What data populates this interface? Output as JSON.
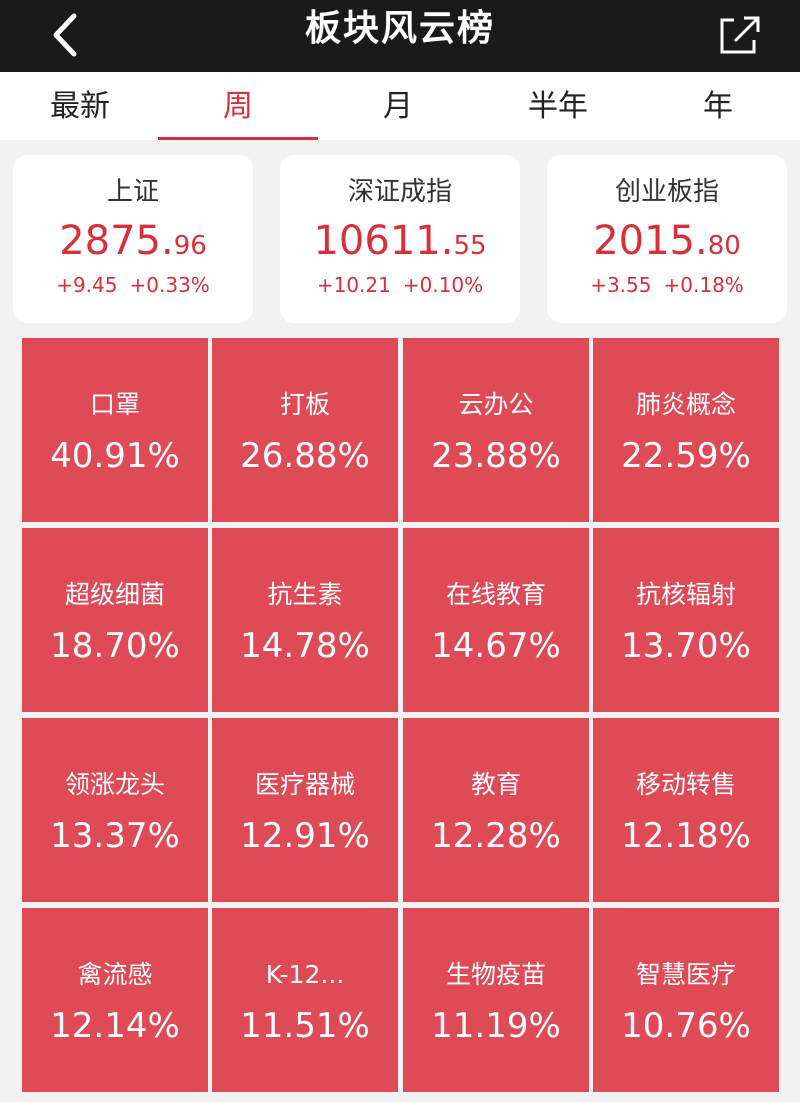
{
  "header": {
    "title": "板块风云榜",
    "back_icon": "chevron-left-icon",
    "share_icon": "share-icon"
  },
  "tabs": [
    {
      "label": "最新",
      "active": false
    },
    {
      "label": "周",
      "active": true
    },
    {
      "label": "月",
      "active": false
    },
    {
      "label": "半年",
      "active": false
    },
    {
      "label": "年",
      "active": false
    }
  ],
  "indices": [
    {
      "name": "上证",
      "price_int": "2875.",
      "price_dec": "96",
      "change": "+9.45",
      "change_pct": "+0.33%"
    },
    {
      "name": "深证成指",
      "price_int": "10611.",
      "price_dec": "55",
      "change": "+10.21",
      "change_pct": "+0.10%"
    },
    {
      "name": "创业板指",
      "price_int": "2015.",
      "price_dec": "80",
      "change": "+3.55",
      "change_pct": "+0.18%"
    }
  ],
  "sectors": [
    {
      "name": "口罩",
      "pct": "40.91%"
    },
    {
      "name": "打板",
      "pct": "26.88%"
    },
    {
      "name": "云办公",
      "pct": "23.88%"
    },
    {
      "name": "肺炎概念",
      "pct": "22.59%"
    },
    {
      "name": "超级细菌",
      "pct": "18.70%"
    },
    {
      "name": "抗生素",
      "pct": "14.78%"
    },
    {
      "name": "在线教育",
      "pct": "14.67%"
    },
    {
      "name": "抗核辐射",
      "pct": "13.70%"
    },
    {
      "name": "领涨龙头",
      "pct": "13.37%"
    },
    {
      "name": "医疗器械",
      "pct": "12.91%"
    },
    {
      "name": "教育",
      "pct": "12.28%"
    },
    {
      "name": "移动转售",
      "pct": "12.18%"
    },
    {
      "name": "禽流感",
      "pct": "12.14%"
    },
    {
      "name": "K-12...",
      "pct": "11.51%"
    },
    {
      "name": "生物疫苗",
      "pct": "11.19%"
    },
    {
      "name": "智慧医疗",
      "pct": "10.76%"
    }
  ],
  "colors": {
    "header_bg": "#1a1a1a",
    "accent_red": "#d6313a",
    "tile_red": "#de4a55"
  }
}
